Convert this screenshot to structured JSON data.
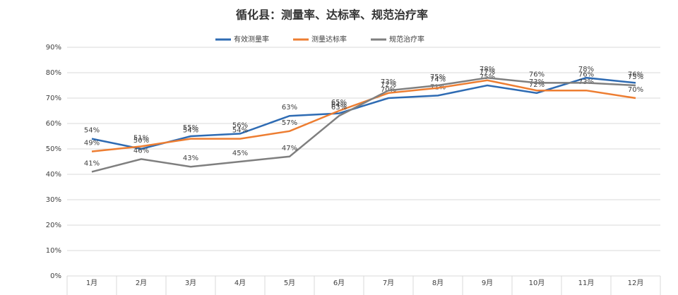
{
  "chart_data": {
    "type": "line",
    "title": "循化县：测量率、达标率、规范治疗率",
    "categories": [
      "1月",
      "2月",
      "3月",
      "4月",
      "5月",
      "6月",
      "7月",
      "8月",
      "9月",
      "10月",
      "11月",
      "12月"
    ],
    "series": [
      {
        "name": "有效测量率",
        "color": "#2e6bb3",
        "values": [
          54,
          50,
          55,
          56,
          63,
          64,
          70,
          71,
          75,
          72,
          78,
          76
        ],
        "value_labels": [
          "54%",
          "50%",
          "55%",
          "56%",
          "63%",
          "64%",
          "70%",
          "71%",
          "75%",
          "72%",
          "78%",
          "76%"
        ]
      },
      {
        "name": "测量达标率",
        "color": "#ed7d31",
        "values": [
          49,
          51,
          54,
          54,
          57,
          65,
          72,
          74,
          77,
          73,
          73,
          70
        ],
        "value_labels": [
          "49%",
          "51%",
          "54%",
          "54%",
          "57%",
          "65%",
          "72%",
          "74%",
          "77%",
          "73%",
          "73%",
          "70%"
        ]
      },
      {
        "name": "规范治疗率",
        "color": "#7f7f7f",
        "values": [
          41,
          46,
          43,
          45,
          47,
          63,
          73,
          75,
          78,
          76,
          76,
          75
        ],
        "value_labels": [
          "41%",
          "46%",
          "43%",
          "45%",
          "47%",
          "63%",
          "73%",
          "75%",
          "78%",
          "76%",
          "76%",
          "75%"
        ]
      }
    ],
    "ylim": [
      0,
      90
    ],
    "yticks": [
      {
        "value": 0,
        "label": "0%"
      },
      {
        "value": 10,
        "label": "10%"
      },
      {
        "value": 20,
        "label": "20%"
      },
      {
        "value": 30,
        "label": "30%"
      },
      {
        "value": 40,
        "label": "40%"
      },
      {
        "value": 50,
        "label": "50%"
      },
      {
        "value": 60,
        "label": "60%"
      },
      {
        "value": 70,
        "label": "70%"
      },
      {
        "value": 80,
        "label": "80%"
      },
      {
        "value": 90,
        "label": "90%"
      }
    ],
    "grid": true,
    "legend": "top"
  }
}
